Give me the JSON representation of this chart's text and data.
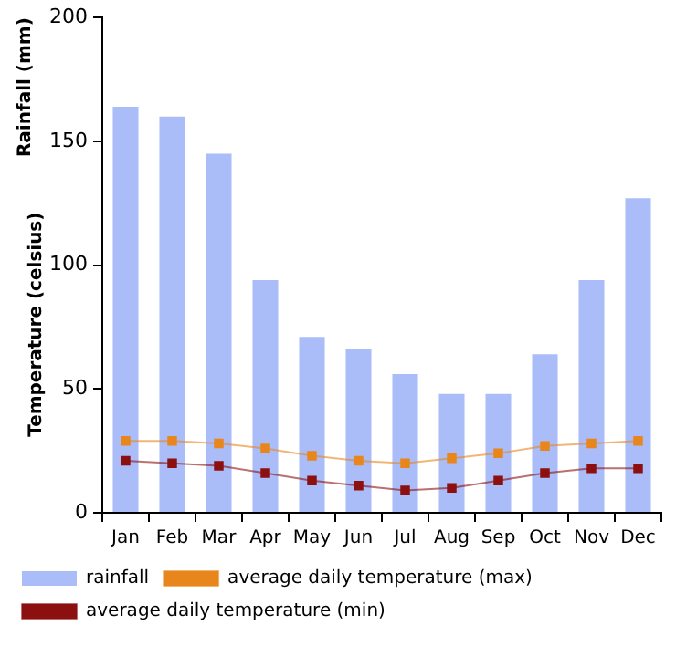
{
  "chart_data": {
    "type": "bar",
    "ylabel": "Rainfall (mm)",
    "annotations": [
      "Temperature (celsius)"
    ],
    "categories": [
      "Jan",
      "Feb",
      "Mar",
      "Apr",
      "May",
      "Jun",
      "Jul",
      "Aug",
      "Sep",
      "Oct",
      "Nov",
      "Dec"
    ],
    "series": [
      {
        "name": "rainfall",
        "color": "#aabdf8",
        "values": [
          164,
          160,
          145,
          94,
          71,
          66,
          56,
          48,
          48,
          64,
          94,
          127
        ]
      },
      {
        "name": "average daily temperature (max)",
        "type": "line",
        "color": "#e8861c",
        "values": [
          29,
          29,
          28,
          26,
          23,
          21,
          20,
          22,
          24,
          27,
          28,
          29
        ]
      },
      {
        "name": "average daily temperature (min)",
        "type": "line",
        "color": "#8c1010",
        "values": [
          21,
          20,
          19,
          16,
          13,
          11,
          9,
          10,
          13,
          16,
          18,
          18
        ]
      }
    ],
    "ylim": [
      0,
      200
    ],
    "yticks": [
      0,
      50,
      100,
      150,
      200
    ],
    "grid": false,
    "legend": "bottom",
    "marker": "square"
  }
}
